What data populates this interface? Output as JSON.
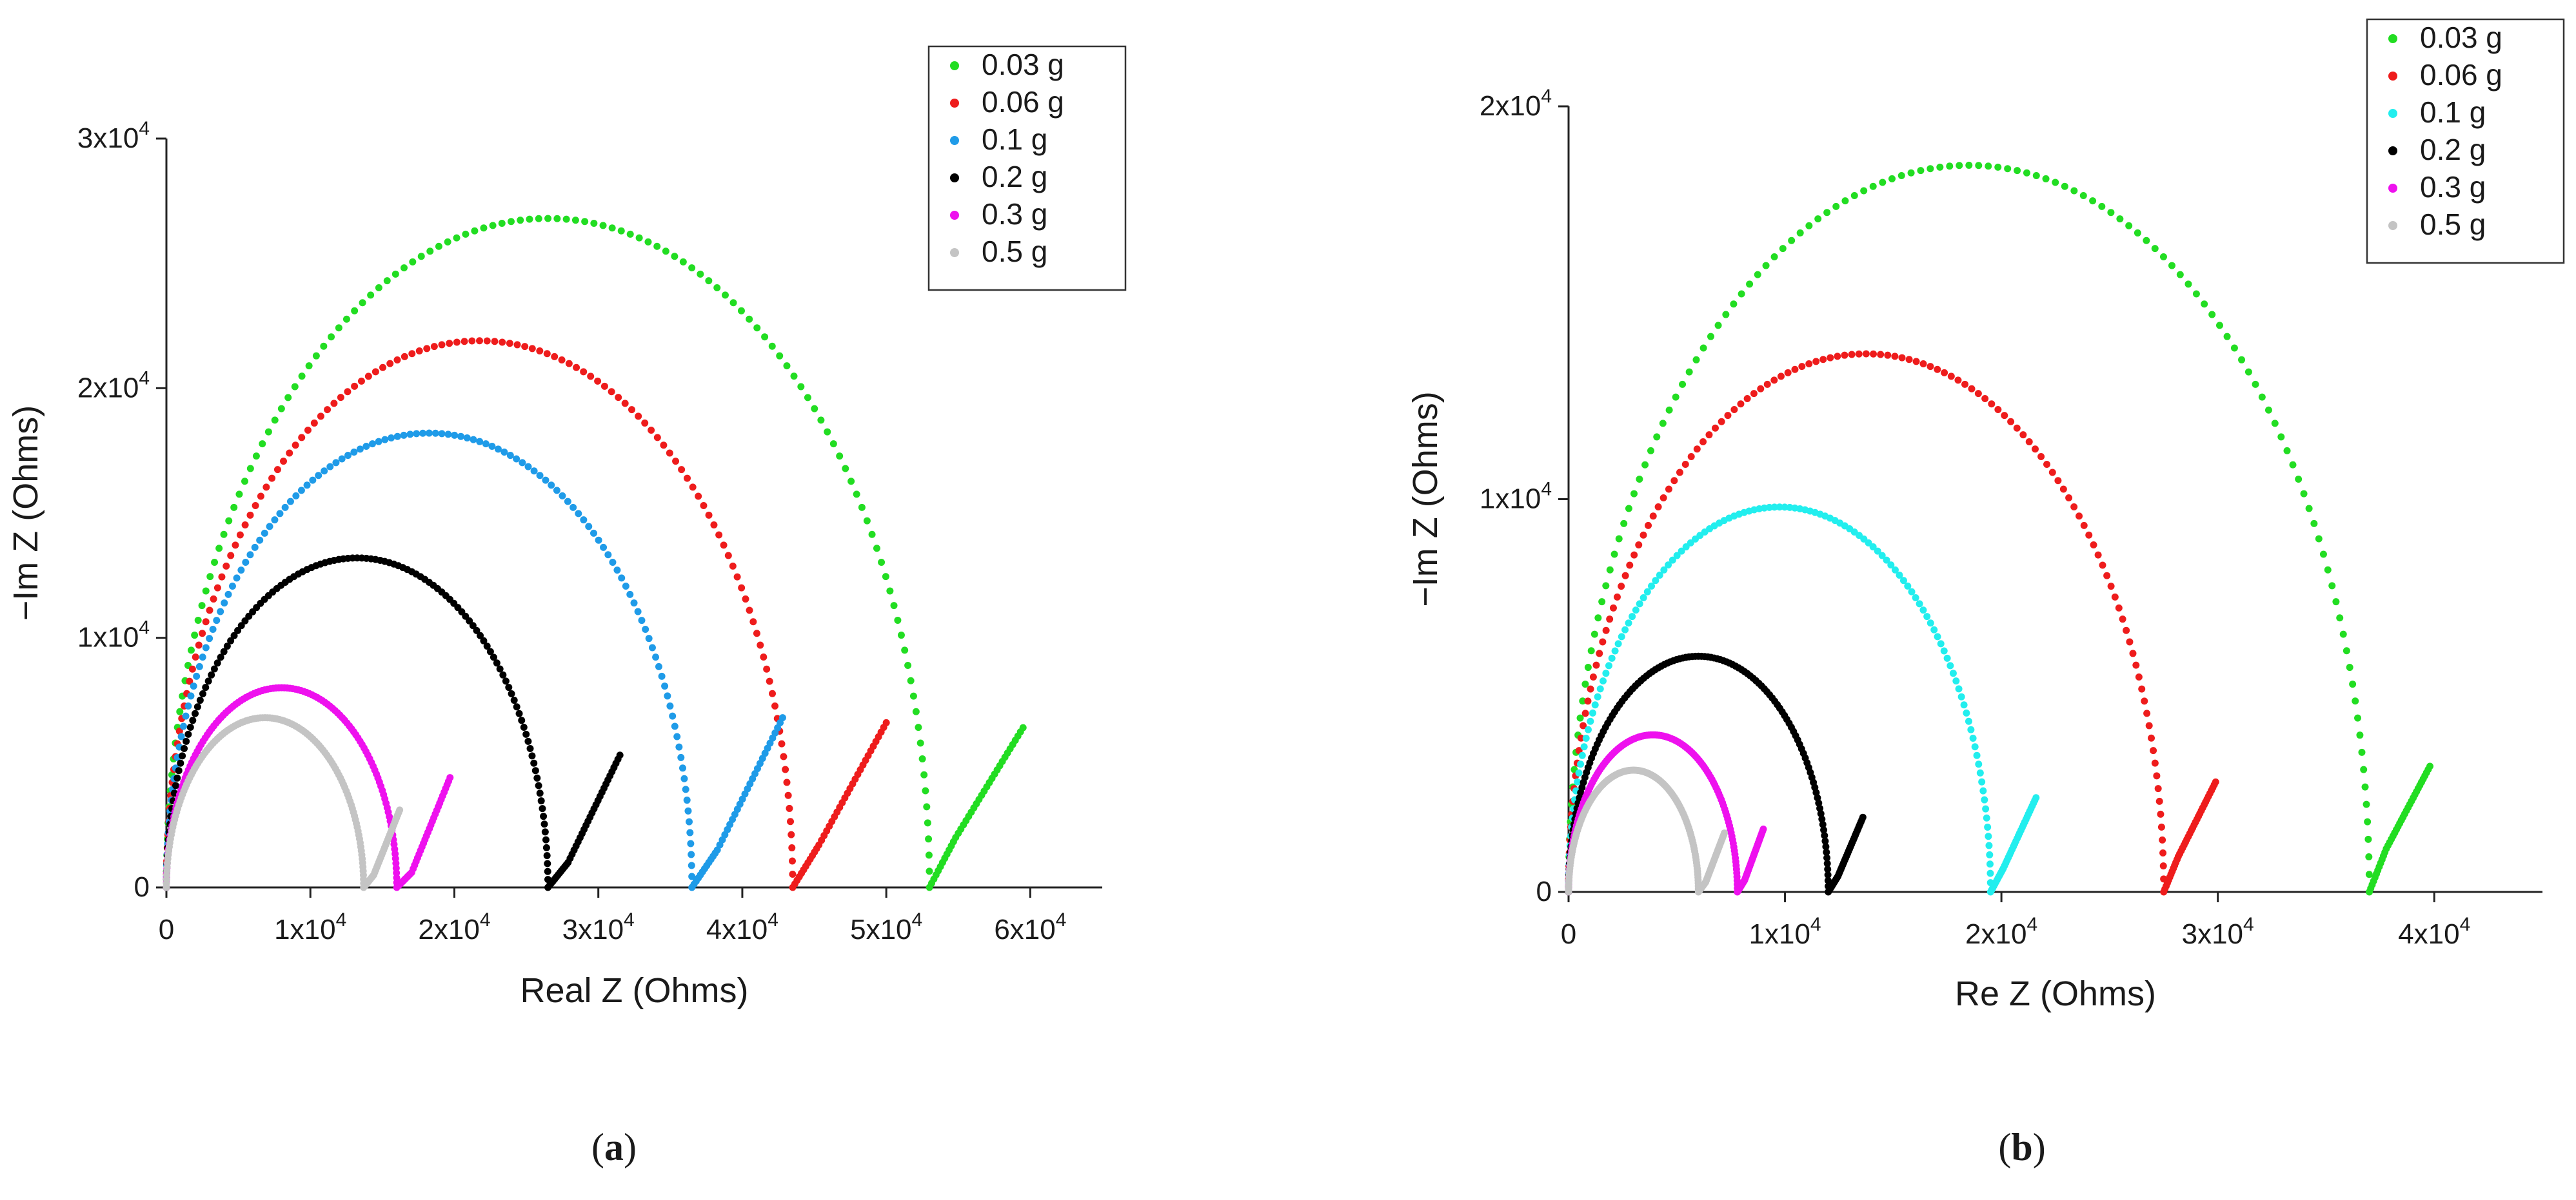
{
  "figure": {
    "panel_a_caption_letter": "a",
    "panel_b_caption_letter": "b"
  },
  "chart_data": [
    {
      "type": "scatter",
      "panel": "a",
      "title": "",
      "xlabel": "Real Z (Ohms)",
      "ylabel": "−Im Z (Ohms)",
      "xlim": [
        0,
        65000
      ],
      "ylim": [
        0,
        30000
      ],
      "xticks": [
        0,
        10000,
        20000,
        30000,
        40000,
        50000,
        60000
      ],
      "xtick_labels": [
        {
          "base": "0",
          "exp": ""
        },
        {
          "base": "1x10",
          "exp": "4"
        },
        {
          "base": "2x10",
          "exp": "4"
        },
        {
          "base": "3x10",
          "exp": "4"
        },
        {
          "base": "4x10",
          "exp": "4"
        },
        {
          "base": "5x10",
          "exp": "4"
        },
        {
          "base": "6x10",
          "exp": "4"
        }
      ],
      "yticks": [
        0,
        10000,
        20000,
        30000
      ],
      "ytick_labels": [
        {
          "base": "0",
          "exp": ""
        },
        {
          "base": "1x10",
          "exp": "4"
        },
        {
          "base": "2x10",
          "exp": "4"
        },
        {
          "base": "3x10",
          "exp": "4"
        }
      ],
      "legend_position": "top-right",
      "series": [
        {
          "name": "0.03 g",
          "color": "#22dd22",
          "r0": 0,
          "r1": 53000,
          "peak": 26800,
          "tail_min": 2000,
          "tail_end_x": 59500,
          "tail_end_y": 6400
        },
        {
          "name": "0.06 g",
          "color": "#ee1c1c",
          "r0": 0,
          "r1": 43500,
          "peak": 21900,
          "tail_min": 1700,
          "tail_end_x": 50000,
          "tail_end_y": 6600
        },
        {
          "name": "0.1 g",
          "color": "#1f9be8",
          "r0": 0,
          "r1": 36500,
          "peak": 18200,
          "tail_min": 1500,
          "tail_end_x": 42800,
          "tail_end_y": 6800
        },
        {
          "name": "0.2 g",
          "color": "#000000",
          "r0": 0,
          "r1": 26500,
          "peak": 13200,
          "tail_min": 1000,
          "tail_end_x": 31500,
          "tail_end_y": 5300
        },
        {
          "name": "0.3 g",
          "color": "#ee11ee",
          "r0": 0,
          "r1": 16000,
          "peak": 8000,
          "tail_min": 600,
          "tail_end_x": 19700,
          "tail_end_y": 4400
        },
        {
          "name": "0.5 g",
          "color": "#c4c4c4",
          "r0": 0,
          "r1": 13700,
          "peak": 6800,
          "tail_min": 500,
          "tail_end_x": 16200,
          "tail_end_y": 3100
        }
      ]
    },
    {
      "type": "scatter",
      "panel": "b",
      "title": "",
      "xlabel": "Re Z (Ohms)",
      "ylabel": "−Im Z (Ohms)",
      "xlim": [
        0,
        45000
      ],
      "ylim": [
        0,
        20000
      ],
      "xticks": [
        0,
        10000,
        20000,
        30000,
        40000
      ],
      "xtick_labels": [
        {
          "base": "0",
          "exp": ""
        },
        {
          "base": "1x10",
          "exp": "4"
        },
        {
          "base": "2x10",
          "exp": "4"
        },
        {
          "base": "3x10",
          "exp": "4"
        },
        {
          "base": "4x10",
          "exp": "4"
        }
      ],
      "yticks": [
        0,
        10000,
        20000
      ],
      "ytick_labels": [
        {
          "base": "0",
          "exp": ""
        },
        {
          "base": "1x10",
          "exp": "4"
        },
        {
          "base": "2x10",
          "exp": "4"
        }
      ],
      "legend_position": "top-right",
      "series": [
        {
          "name": "0.03 g",
          "color": "#22dd22",
          "r0": 0,
          "r1": 37000,
          "peak": 18500,
          "tail_min": 1100,
          "tail_end_x": 39800,
          "tail_end_y": 3200
        },
        {
          "name": "0.06 g",
          "color": "#ee1c1c",
          "r0": 0,
          "r1": 27500,
          "peak": 13700,
          "tail_min": 900,
          "tail_end_x": 29900,
          "tail_end_y": 2800
        },
        {
          "name": "0.1 g",
          "color": "#22eeee",
          "r0": 0,
          "r1": 19500,
          "peak": 9800,
          "tail_min": 600,
          "tail_end_x": 21600,
          "tail_end_y": 2400
        },
        {
          "name": "0.2 g",
          "color": "#000000",
          "r0": 0,
          "r1": 12000,
          "peak": 6000,
          "tail_min": 400,
          "tail_end_x": 13600,
          "tail_end_y": 1900
        },
        {
          "name": "0.3 g",
          "color": "#ee11ee",
          "r0": 0,
          "r1": 7800,
          "peak": 4000,
          "tail_min": 300,
          "tail_end_x": 9000,
          "tail_end_y": 1600
        },
        {
          "name": "0.5 g",
          "color": "#c4c4c4",
          "r0": 0,
          "r1": 6000,
          "peak": 3100,
          "tail_min": 250,
          "tail_end_x": 7200,
          "tail_end_y": 1500
        }
      ]
    }
  ]
}
